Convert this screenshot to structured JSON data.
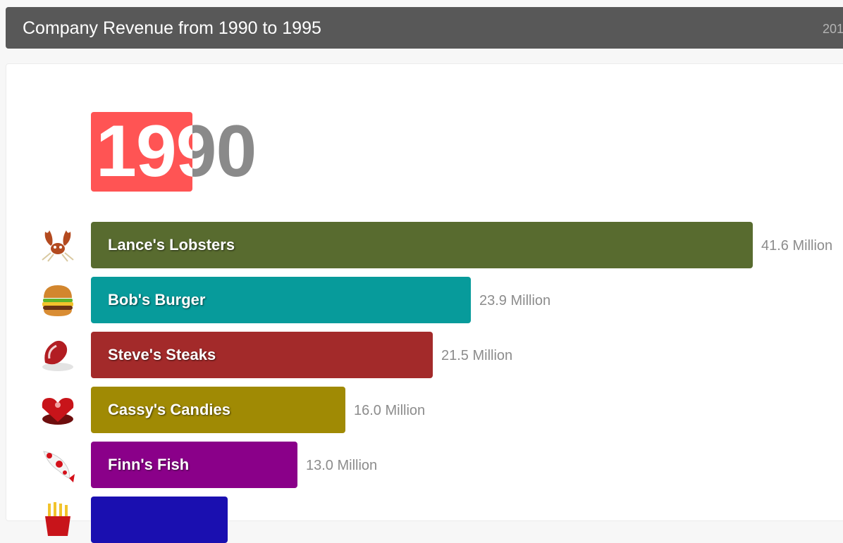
{
  "header": {
    "title": "Company Revenue from 1990 to 1995",
    "right_text": "201"
  },
  "timeline": {
    "year": "1990",
    "progress": 0.52,
    "color": "#ff5454"
  },
  "chart_data": {
    "type": "bar",
    "orientation": "horizontal",
    "title": "Company Revenue from 1990 to 1995",
    "year": "1990",
    "categories": [
      "Lance's Lobsters",
      "Bob's Burger",
      "Steve's Steaks",
      "Cassy's Candies",
      "Finn's Fish",
      ""
    ],
    "values": [
      41.6,
      23.9,
      21.5,
      16.0,
      13.0,
      null
    ],
    "value_labels": [
      "41.6 Million",
      "23.9 Million",
      "21.5 Million",
      "16.0 Million",
      "13.0 Million",
      ""
    ],
    "colors": [
      "#586b2f",
      "#079b9b",
      "#a32a2a",
      "#a08a04",
      "#8a0089",
      "#1a0fb0"
    ],
    "icons": [
      "lobster-icon",
      "burger-icon",
      "steak-icon",
      "candy-box-icon",
      "koi-fish-icon",
      "fries-icon"
    ],
    "xlim": [
      0,
      41.6
    ]
  }
}
